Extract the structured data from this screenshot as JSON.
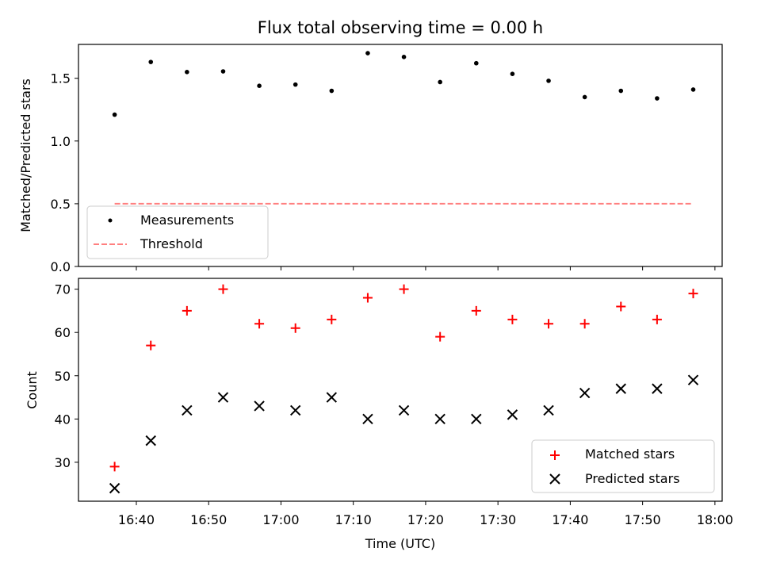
{
  "chart_data": [
    {
      "type": "scatter",
      "title": "Flux total observing time = 0.00 h",
      "xlabel": "",
      "ylabel": "Matched/Predicted stars",
      "ylim": [
        0,
        1.77
      ],
      "yticks": [
        "0.0",
        "0.5",
        "1.0",
        "1.5"
      ],
      "series": [
        {
          "name": "Measurements",
          "marker": "dot",
          "color": "#000000",
          "x": [
            "16:37",
            "16:42",
            "16:47",
            "16:52",
            "16:57",
            "17:02",
            "17:07",
            "17:12",
            "17:17",
            "17:22",
            "17:27",
            "17:32",
            "17:37",
            "17:42",
            "17:47",
            "17:52",
            "17:57"
          ],
          "values": [
            1.21,
            1.63,
            1.55,
            1.555,
            1.44,
            1.45,
            1.4,
            1.7,
            1.67,
            1.47,
            1.62,
            1.535,
            1.48,
            1.35,
            1.4,
            1.34,
            1.41
          ]
        },
        {
          "name": "Threshold",
          "style": "dashed-line",
          "color": "#ff7f7f",
          "x": [
            "16:37",
            "17:57"
          ],
          "values": [
            0.5,
            0.5
          ]
        }
      ],
      "legend": {
        "position": "lower-left",
        "entries": [
          {
            "label": "Measurements"
          },
          {
            "label": "Threshold"
          }
        ]
      }
    },
    {
      "type": "scatter",
      "title": "",
      "xlabel": "Time (UTC)",
      "ylabel": "Count",
      "ylim": [
        21,
        72.5
      ],
      "yticks": [
        "30",
        "40",
        "50",
        "60",
        "70"
      ],
      "xticks": [
        "16:40",
        "16:50",
        "17:00",
        "17:10",
        "17:20",
        "17:30",
        "17:40",
        "17:50",
        "18:00"
      ],
      "series": [
        {
          "name": "Matched stars",
          "marker": "plus",
          "color": "#ff0000",
          "x": [
            "16:37",
            "16:42",
            "16:47",
            "16:52",
            "16:57",
            "17:02",
            "17:07",
            "17:12",
            "17:17",
            "17:22",
            "17:27",
            "17:32",
            "17:37",
            "17:42",
            "17:47",
            "17:52",
            "17:57"
          ],
          "values": [
            29,
            57,
            65,
            70,
            62,
            61,
            63,
            68,
            70,
            59,
            65,
            63,
            62,
            62,
            66,
            63,
            69
          ]
        },
        {
          "name": "Predicted stars",
          "marker": "x",
          "color": "#000000",
          "x": [
            "16:37",
            "16:42",
            "16:47",
            "16:52",
            "16:57",
            "17:02",
            "17:07",
            "17:12",
            "17:17",
            "17:22",
            "17:27",
            "17:32",
            "17:37",
            "17:42",
            "17:47",
            "17:52",
            "17:57"
          ],
          "values": [
            24,
            35,
            42,
            45,
            43,
            42,
            45,
            40,
            42,
            40,
            40,
            41,
            42,
            46,
            47,
            47,
            49
          ]
        }
      ],
      "legend": {
        "position": "lower-right",
        "entries": [
          {
            "label": "Matched stars"
          },
          {
            "label": "Predicted stars"
          }
        ]
      }
    }
  ]
}
